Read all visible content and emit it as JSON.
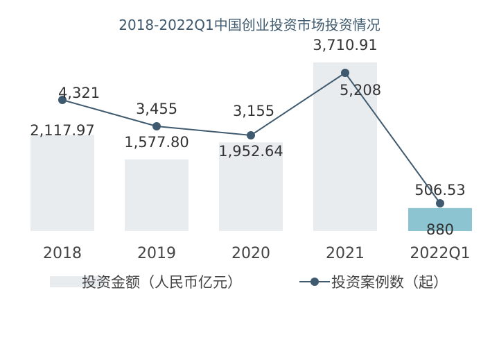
{
  "chart_data": {
    "type": "bar",
    "title": "2018-2022Q1中国创业投资市场投资情况",
    "categories": [
      "2018",
      "2019",
      "2020",
      "2021",
      "2022Q1"
    ],
    "series": [
      {
        "name": "投资金额（人民币亿元）",
        "type": "bar",
        "values": [
          2117.97,
          1577.8,
          1952.64,
          3710.91,
          506.53
        ],
        "labels": [
          "2,117.97",
          "1,577.80",
          "1,952.64",
          "3,710.91",
          "506.53"
        ],
        "color": "#e8ecef",
        "highlight_color": "#8cc5d1"
      },
      {
        "name": "投资案例数（起）",
        "type": "line",
        "values": [
          4321,
          3455,
          3155,
          5208,
          880
        ],
        "labels": [
          "4,321",
          "3,455",
          "3,155",
          "5,208",
          "880"
        ],
        "color": "#3f5a6e"
      }
    ],
    "legend": "bottom",
    "grid": false
  }
}
